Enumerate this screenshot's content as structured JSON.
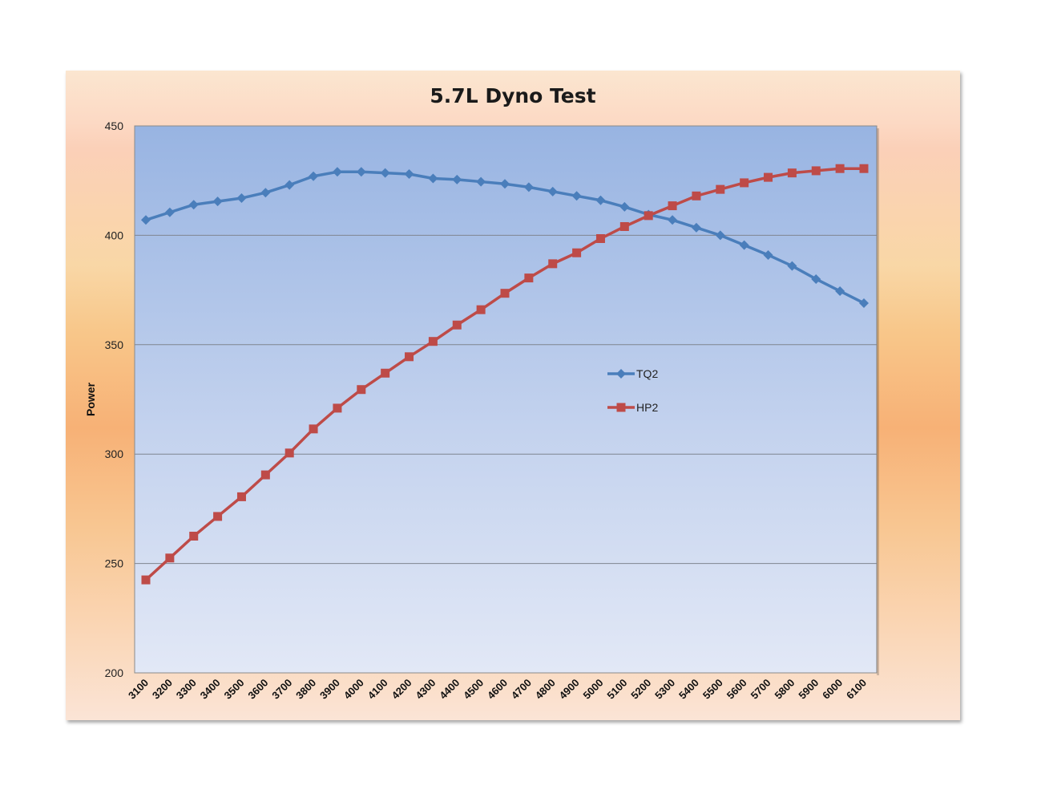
{
  "chart_data": {
    "type": "line",
    "title": "5.7L Dyno Test",
    "xlabel": "",
    "ylabel": "Power",
    "ylim": [
      200,
      450
    ],
    "yticks": [
      200,
      250,
      300,
      350,
      400,
      450
    ],
    "grid": true,
    "legend_position": "center-right",
    "x": [
      3100,
      3200,
      3300,
      3400,
      3500,
      3600,
      3700,
      3800,
      3900,
      4000,
      4100,
      4200,
      4300,
      4400,
      4500,
      4600,
      4700,
      4800,
      4900,
      5000,
      5100,
      5200,
      5300,
      5400,
      5500,
      5600,
      5700,
      5800,
      5900,
      6000,
      6100
    ],
    "series": [
      {
        "name": "TQ2",
        "color": "#4a7ebb",
        "marker": "diamond",
        "values": [
          407,
          410.5,
          414,
          415.5,
          417,
          419.5,
          423,
          427,
          429,
          429,
          428.5,
          428,
          426,
          425.5,
          424.5,
          423.5,
          422,
          420,
          418,
          416,
          413,
          409.5,
          407,
          403.5,
          400,
          395.5,
          391,
          386,
          380,
          374.5,
          369
        ]
      },
      {
        "name": "HP2",
        "color": "#be4b48",
        "marker": "square",
        "values": [
          242.5,
          252.5,
          262.5,
          271.5,
          280.5,
          290.5,
          300.5,
          311.5,
          321,
          329.5,
          337,
          344.5,
          351.5,
          359,
          366,
          373.5,
          380.5,
          387,
          392,
          398.5,
          404,
          409,
          413.5,
          418,
          421,
          424,
          426.5,
          428.5,
          429.5,
          430.5,
          430.5
        ]
      }
    ]
  }
}
